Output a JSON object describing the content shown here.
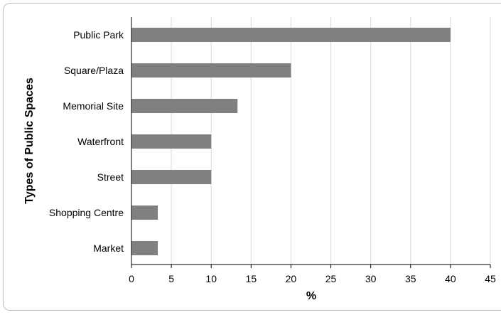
{
  "chart_data": {
    "type": "bar",
    "orientation": "horizontal",
    "title": "",
    "xlabel": "%",
    "ylabel": "Types of Public Spaces",
    "categories": [
      "Public Park",
      "Square/Plaza",
      "Memorial Site",
      "Waterfront",
      "Street",
      "Shopping Centre",
      "Market"
    ],
    "values": [
      40,
      20,
      13.3,
      10,
      10,
      3.3,
      3.3
    ],
    "xlim": [
      0,
      45
    ],
    "xticks": [
      0,
      5,
      10,
      15,
      20,
      25,
      30,
      35,
      40,
      45
    ],
    "grid": true,
    "bar_color": "#808080"
  }
}
